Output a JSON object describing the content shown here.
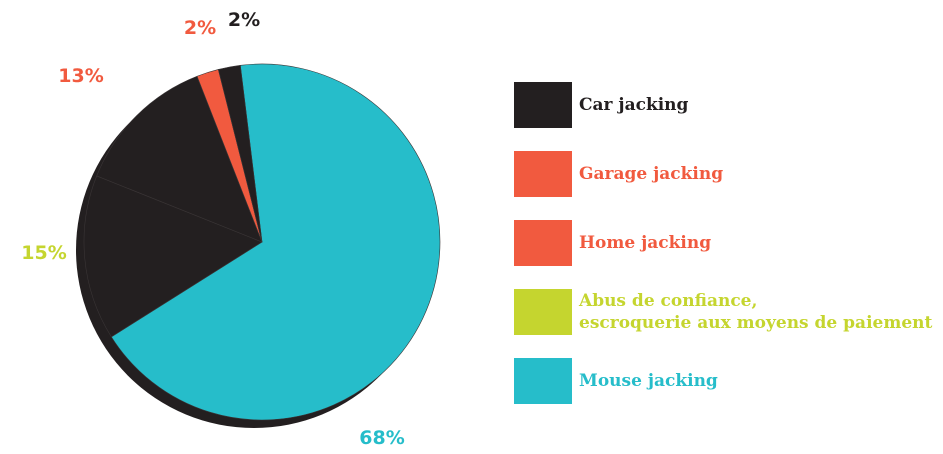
{
  "chart_data": {
    "type": "pie",
    "slices": [
      {
        "label": "Mouse jacking",
        "value": 68,
        "value_label": "68%",
        "color": "#26BDCA"
      },
      {
        "label": "Abus de confiance, escroquerie aux moyens de paiement",
        "label_lines": [
          "Abus de confiance,",
          "escroquerie aux moyens de paiement"
        ],
        "value": 15,
        "value_label": "15%",
        "color": "#231F20",
        "label_color": "#C5D52F"
      },
      {
        "label": "Home jacking",
        "value": 13,
        "value_label": "13%",
        "color": "#231F20",
        "label_color": "#F15A3F"
      },
      {
        "label": "Garage jacking",
        "value": 2,
        "value_label": "2%",
        "color": "#F15A3F"
      },
      {
        "label": "Car jacking",
        "value": 2,
        "value_label": "2%",
        "color": "#231F20"
      }
    ],
    "legend": [
      {
        "label_lines": [
          "Car jacking"
        ],
        "swatch_color": "#231F20",
        "text_color": "#231F20"
      },
      {
        "label_lines": [
          "Garage jacking"
        ],
        "swatch_color": "#F15A3F",
        "text_color": "#F15A3F"
      },
      {
        "label_lines": [
          "Home jacking"
        ],
        "swatch_color": "#F15A3F",
        "text_color": "#F15A3F"
      },
      {
        "label_lines": [
          "Abus de confiance,",
          "escroquerie aux moyens de paiement"
        ],
        "swatch_color": "#C5D52F",
        "text_color": "#C5D52F"
      },
      {
        "label_lines": [
          "Mouse jacking"
        ],
        "swatch_color": "#26BDCA",
        "text_color": "#26BDCA"
      }
    ],
    "legend_placement": "right",
    "title": ""
  }
}
